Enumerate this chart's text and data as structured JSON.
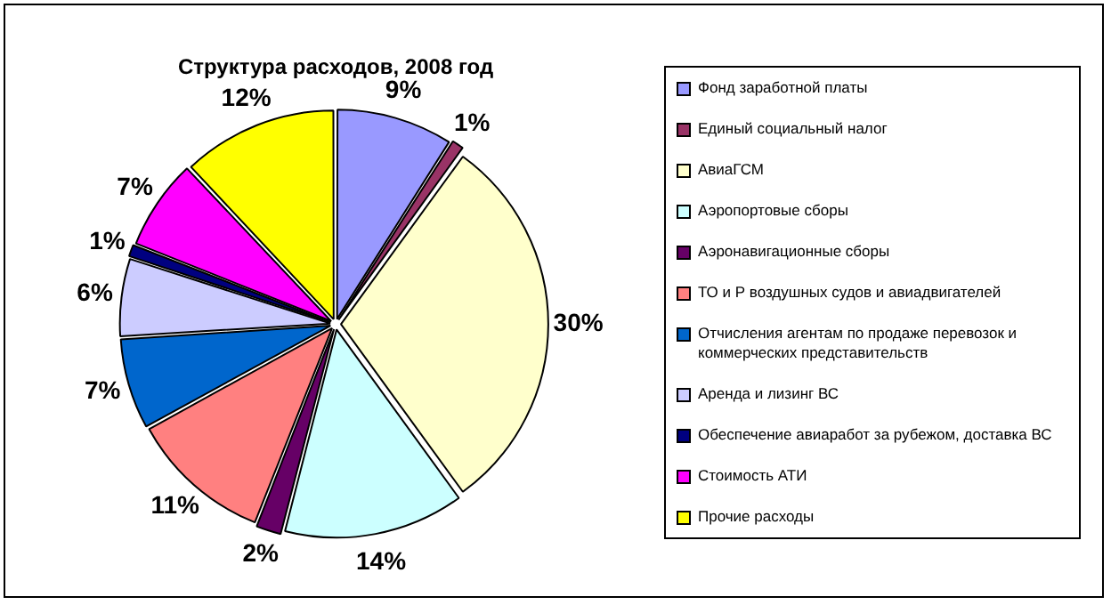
{
  "chart_data": {
    "type": "pie",
    "title": "Структура расходов, 2008 год",
    "categories": [
      "Фонд заработной платы",
      "Единый социальный налог",
      "АвиаГСМ",
      "Аэропортовые сборы",
      "Аэронавигационные сборы",
      "ТО и Р воздушных судов и авиадвигателей",
      "Отчисления агентам по продаже перевозок и коммерческих представительств",
      "Аренда и лизинг ВС",
      "Обеспечение авиаработ за рубежом, доставка ВС",
      "Стоимость АТИ",
      "Прочие расходы"
    ],
    "values": [
      9,
      1,
      30,
      14,
      2,
      11,
      7,
      6,
      1,
      7,
      12
    ],
    "colors": [
      "#9999ff",
      "#993366",
      "#ffffcc",
      "#ccffff",
      "#660066",
      "#ff8080",
      "#0066cc",
      "#ccccff",
      "#000080",
      "#ff00ff",
      "#ffff00"
    ],
    "value_labels": [
      "9%",
      "1%",
      "30%",
      "14%",
      "2%",
      "11%",
      "7%",
      "6%",
      "1%",
      "7%",
      "12%"
    ],
    "legend": "right"
  }
}
